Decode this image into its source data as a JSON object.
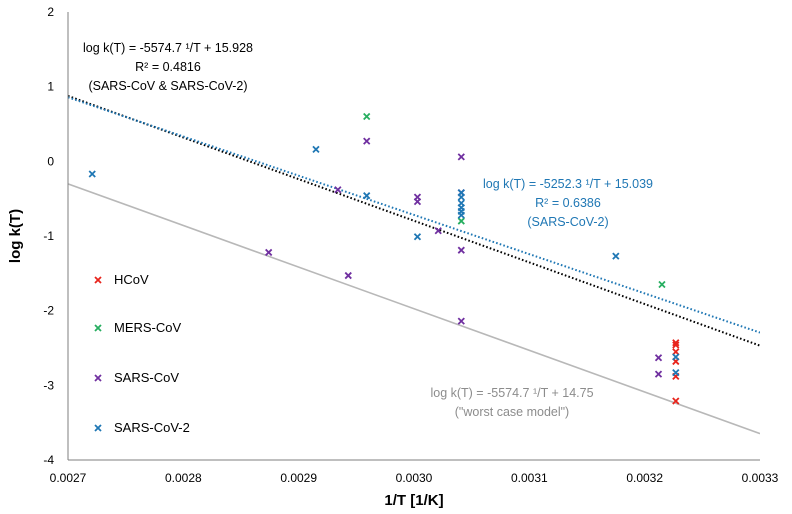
{
  "chart_data": {
    "type": "scatter",
    "xlabel": "1/T [1/K]",
    "ylabel": "log k(T)",
    "xlim": [
      0.0027,
      0.0033
    ],
    "ylim": [
      -4,
      2
    ],
    "xticks": [
      "0.0027",
      "0.0028",
      "0.0029",
      "0.0030",
      "0.0031",
      "0.0032",
      "0.0033"
    ],
    "yticks": [
      "2",
      "1",
      "0",
      "-1",
      "-2",
      "-3",
      "-4"
    ],
    "grid": false,
    "legend_position": "left",
    "series": [
      {
        "name": "HCoV",
        "color": "#e8241c",
        "marker": "x",
        "points": [
          [
            0.003227,
            -2.43
          ],
          [
            0.003227,
            -2.46
          ],
          [
            0.003227,
            -2.55
          ],
          [
            0.003227,
            -2.68
          ],
          [
            0.003227,
            -2.88
          ],
          [
            0.003227,
            -3.21
          ]
        ]
      },
      {
        "name": "MERS-CoV",
        "color": "#27ae60",
        "marker": "x",
        "points": [
          [
            0.002959,
            0.6
          ],
          [
            0.003041,
            -0.8
          ],
          [
            0.003215,
            -1.65
          ]
        ]
      },
      {
        "name": "SARS-CoV",
        "color": "#7030a0",
        "marker": "x",
        "points": [
          [
            0.002874,
            -1.22
          ],
          [
            0.002934,
            -0.38
          ],
          [
            0.002943,
            -1.53
          ],
          [
            0.002959,
            0.27
          ],
          [
            0.003003,
            -0.48
          ],
          [
            0.003003,
            -0.54
          ],
          [
            0.003021,
            -0.93
          ],
          [
            0.003041,
            0.06
          ],
          [
            0.003041,
            -0.42
          ],
          [
            0.003041,
            -1.19
          ],
          [
            0.003041,
            -2.14
          ],
          [
            0.003212,
            -2.63
          ],
          [
            0.003212,
            -2.85
          ]
        ]
      },
      {
        "name": "SARS-CoV-2",
        "color": "#1f77b4",
        "marker": "x",
        "points": [
          [
            0.002721,
            -0.17
          ],
          [
            0.002915,
            0.16
          ],
          [
            0.002959,
            -0.46
          ],
          [
            0.003003,
            -1.01
          ],
          [
            0.003041,
            -0.42
          ],
          [
            0.003041,
            -0.48
          ],
          [
            0.003041,
            -0.56
          ],
          [
            0.003041,
            -0.62
          ],
          [
            0.003041,
            -0.67
          ],
          [
            0.003041,
            -0.72
          ],
          [
            0.003175,
            -1.27
          ],
          [
            0.003227,
            -2.62
          ],
          [
            0.003227,
            -2.83
          ]
        ]
      }
    ],
    "trendlines": [
      {
        "slope": -5574.7,
        "intercept": 15.928,
        "style": "dotted",
        "color": "#000000",
        "label": [
          "log k(T) = -5574.7  ¹/T  + 15.928",
          "R² = 0.4816",
          "(SARS-CoV & SARS-CoV-2)"
        ],
        "label_color": "#000000"
      },
      {
        "slope": -5252.3,
        "intercept": 15.039,
        "style": "dotted",
        "color": "#1f77b4",
        "label": [
          "log k(T) = -5252.3  ¹/T  + 15.039",
          "R² = 0.6386",
          "(SARS-CoV-2)"
        ],
        "label_color": "#1f77b4"
      },
      {
        "slope": -5574.7,
        "intercept": 14.75,
        "style": "solid",
        "color": "#b8b8b8",
        "label": [
          "log k(T) = -5574.7  ¹/T  + 14.75",
          "(\"worst case model\")"
        ],
        "label_color": "#8c8c8c"
      }
    ]
  }
}
